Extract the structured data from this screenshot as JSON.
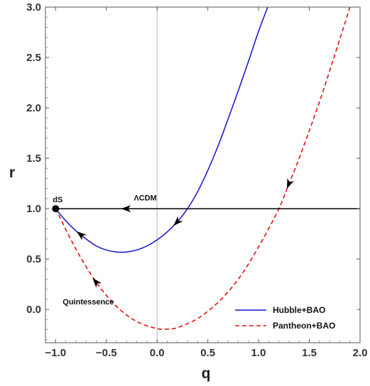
{
  "chart_data": {
    "type": "line",
    "title": "",
    "xlabel": "q",
    "ylabel": "r",
    "xlim": [
      -1.1,
      2.0
    ],
    "ylim": [
      -0.33,
      3.0
    ],
    "xticks": [
      -1.0,
      -0.5,
      0.0,
      0.5,
      1.0,
      1.5,
      2.0
    ],
    "xtick_labels": [
      "−1.0",
      "−0.5",
      "0.0",
      "0.5",
      "1.0",
      "1.5",
      "2.0"
    ],
    "yticks": [
      0.0,
      0.5,
      1.0,
      1.5,
      2.0,
      2.5,
      3.0
    ],
    "ytick_labels": [
      "0.0",
      "0.5",
      "1.0",
      "1.5",
      "2.0",
      "2.5",
      "3.0"
    ],
    "grid": false,
    "legend_position": "bottom-right",
    "vertical_reference_line": {
      "x": 0.0
    },
    "series": [
      {
        "name": "Hubble+BAO",
        "color": "#1010d0",
        "style": "solid",
        "x": [
          -1.0,
          -0.9,
          -0.8,
          -0.7,
          -0.6,
          -0.5,
          -0.4,
          -0.35,
          -0.3,
          -0.2,
          -0.1,
          0.0,
          0.1,
          0.2,
          0.3,
          0.4,
          0.5,
          0.6,
          0.7,
          0.8,
          0.9,
          1.0,
          1.09
        ],
        "y": [
          1.0,
          0.88,
          0.78,
          0.7,
          0.63,
          0.59,
          0.57,
          0.568,
          0.57,
          0.59,
          0.63,
          0.69,
          0.77,
          0.87,
          1.0,
          1.17,
          1.38,
          1.62,
          1.89,
          2.17,
          2.46,
          2.76,
          3.0
        ]
      },
      {
        "name": "Pantheon+BAO",
        "color": "#e01010",
        "style": "dashed",
        "x": [
          -1.0,
          -0.8,
          -0.6,
          -0.4,
          -0.2,
          0.0,
          0.1,
          0.2,
          0.4,
          0.6,
          0.8,
          1.0,
          1.2,
          1.3,
          1.4,
          1.6,
          1.8,
          1.9
        ],
        "y": [
          1.0,
          0.6,
          0.27,
          0.03,
          -0.12,
          -0.19,
          -0.195,
          -0.18,
          -0.09,
          0.07,
          0.3,
          0.62,
          1.0,
          1.25,
          1.5,
          2.06,
          2.68,
          3.0
        ]
      },
      {
        "name": "ΛCDM",
        "color": "#000000",
        "style": "solid",
        "x": [
          -1.0,
          2.0
        ],
        "y": [
          1.0,
          1.0
        ]
      }
    ],
    "points": [
      {
        "label": "dS",
        "x": -1.0,
        "y": 1.0
      }
    ],
    "annotations": [
      {
        "text": "ΛCDM",
        "x": -0.23,
        "y": 1.08
      },
      {
        "text": "Quintessence",
        "x": -0.93,
        "y": 0.05
      }
    ],
    "arrows": [
      {
        "series": "Hubble+BAO",
        "x": -0.75,
        "y": 0.74,
        "direction": "toward-dS"
      },
      {
        "series": "Hubble+BAO",
        "x": 0.2,
        "y": 0.87,
        "direction": "downward"
      },
      {
        "series": "Pantheon+BAO",
        "x": -0.6,
        "y": 0.27,
        "direction": "toward-dS"
      },
      {
        "series": "Pantheon+BAO",
        "x": 1.3,
        "y": 1.25,
        "direction": "downward"
      },
      {
        "series": "ΛCDM",
        "x": -0.3,
        "y": 1.0,
        "direction": "toward-dS"
      }
    ]
  }
}
